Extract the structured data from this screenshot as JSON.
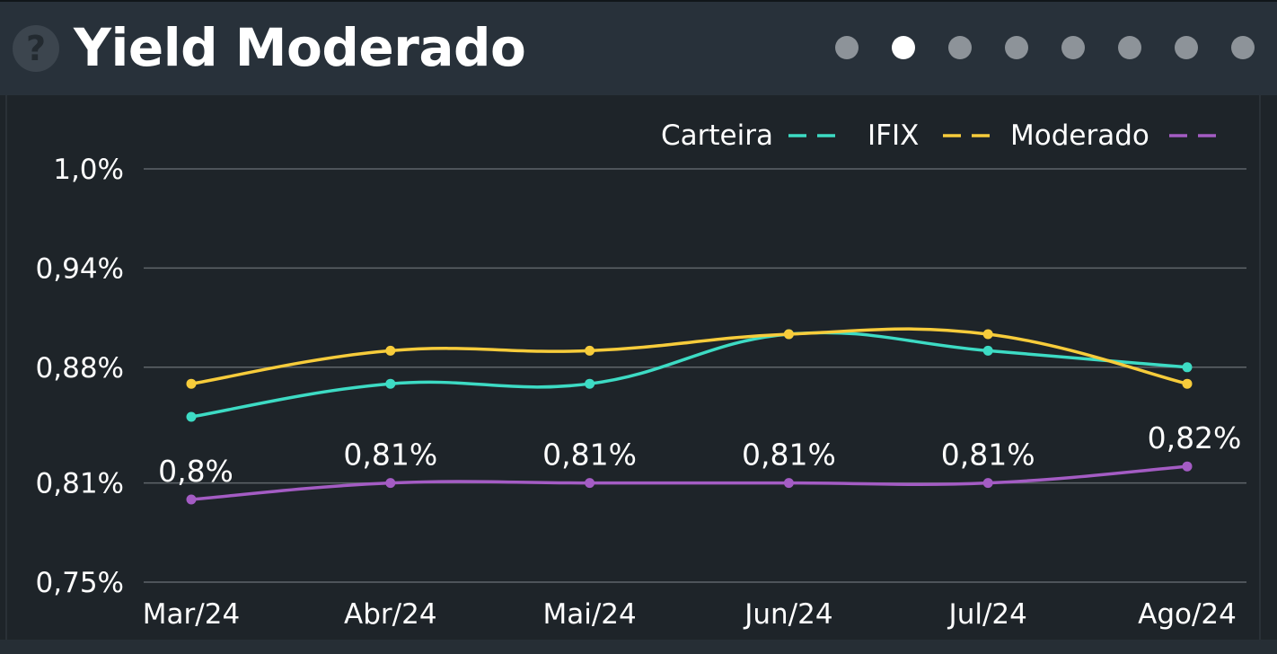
{
  "header": {
    "title": "Yield Moderado",
    "help_icon": "question-icon",
    "pager": {
      "count": 8,
      "active_index": 1
    }
  },
  "colors": {
    "background": "#1e2429",
    "header_background": "#28313a",
    "grid": "#5f656a",
    "text": "#ffffff",
    "Carteira": "#3ddbc4",
    "IFIX": "#f7cc3b",
    "Moderado": "#a45cc4"
  },
  "chart_data": {
    "type": "line",
    "categories": [
      "Mar/24",
      "Abr/24",
      "Mai/24",
      "Jun/24",
      "Jul/24",
      "Ago/24"
    ],
    "y_ticks": [
      {
        "value": 0.75,
        "label": "0,75%"
      },
      {
        "value": 0.81,
        "label": "0,81%"
      },
      {
        "value": 0.88,
        "label": "0,88%"
      },
      {
        "value": 0.94,
        "label": "0,94%"
      },
      {
        "value": 1.0,
        "label": "1,0%"
      }
    ],
    "ylim": [
      0.75,
      1.0
    ],
    "grid": true,
    "legend_position": "top-right",
    "series": [
      {
        "name": "Carteira",
        "values": [
          0.85,
          0.87,
          0.87,
          0.9,
          0.89,
          0.88
        ],
        "data_labels": null
      },
      {
        "name": "IFIX",
        "values": [
          0.87,
          0.89,
          0.89,
          0.9,
          0.9,
          0.87
        ],
        "data_labels": null
      },
      {
        "name": "Moderado",
        "values": [
          0.8,
          0.81,
          0.81,
          0.81,
          0.81,
          0.82
        ],
        "data_labels": [
          "0,8%",
          "0,81%",
          "0,81%",
          "0,81%",
          "0,81%",
          "0,82%"
        ]
      }
    ]
  }
}
